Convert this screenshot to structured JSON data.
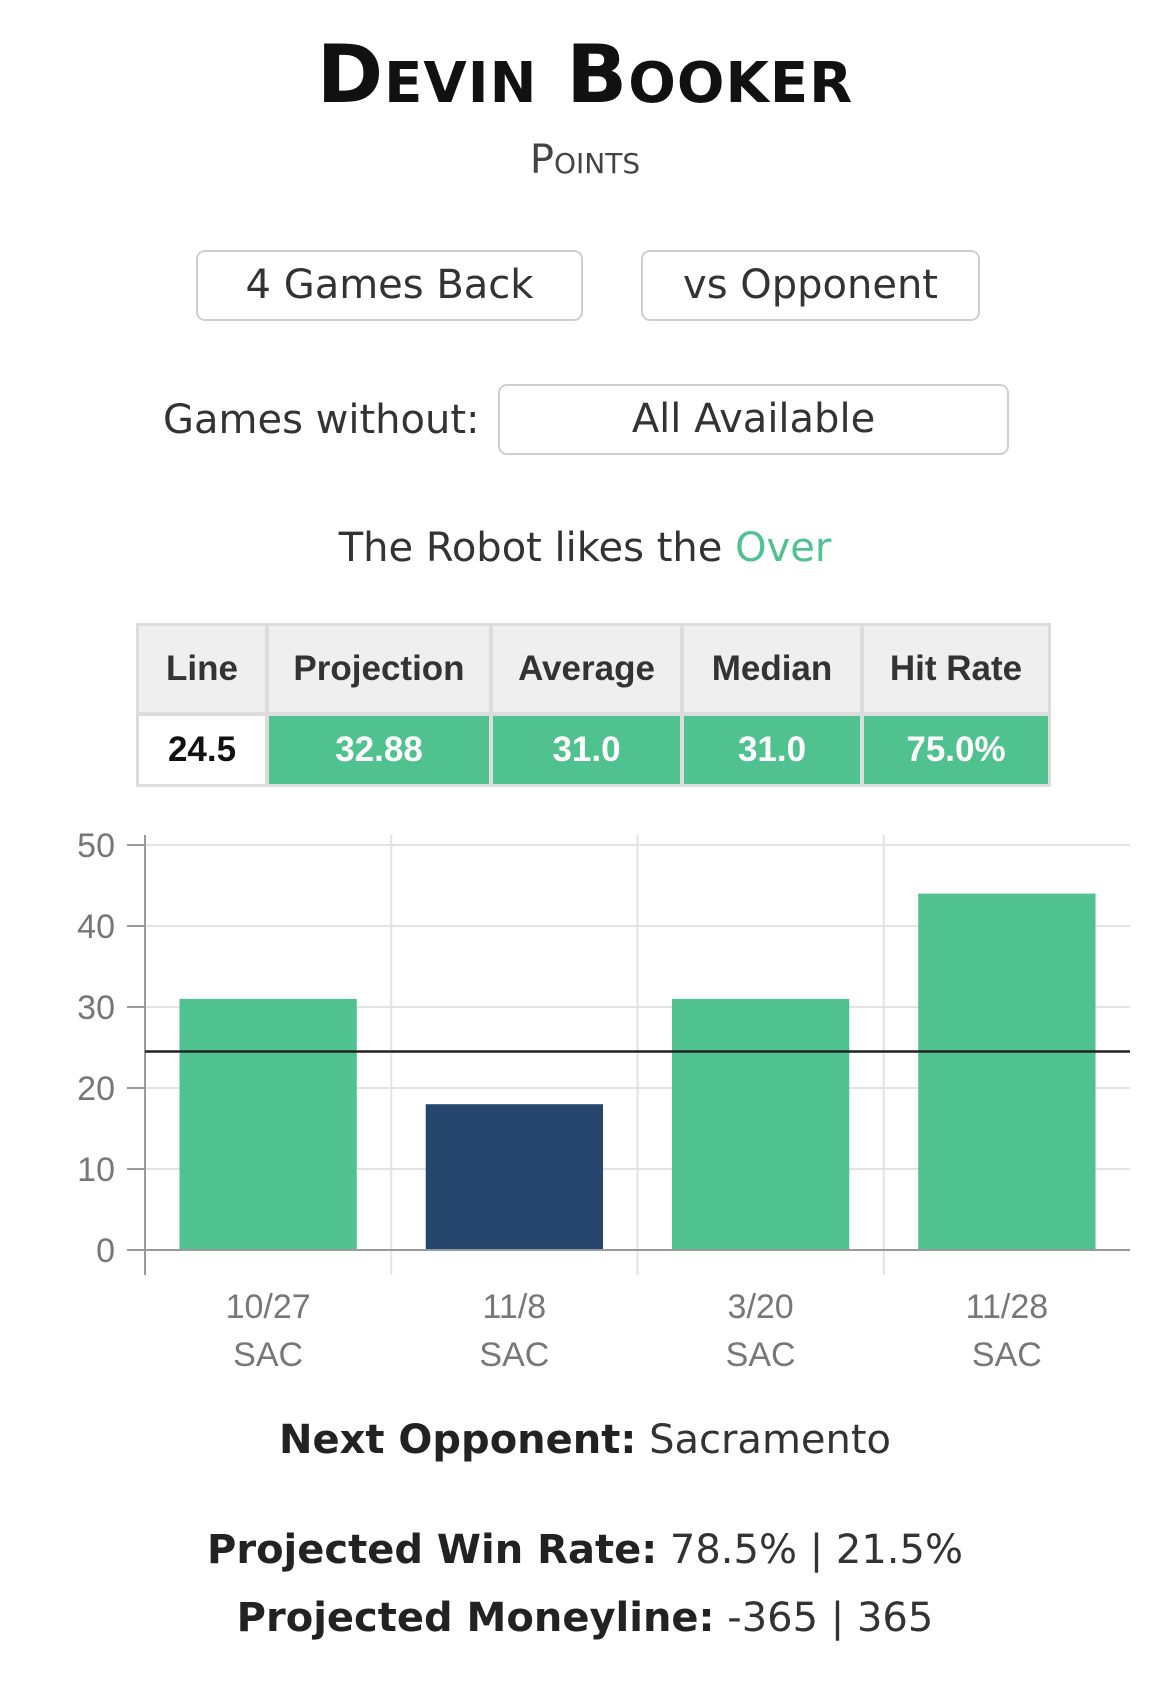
{
  "header": {
    "player": "Devin Booker",
    "stat": "Points"
  },
  "filters": {
    "games_back": "4 Games Back",
    "vs_opponent": "vs Opponent",
    "games_without_label": "Games without:",
    "games_without_value": "All Available"
  },
  "recommendation": {
    "prefix": "The Robot likes the",
    "pick": "Over",
    "pick_color": "#4fc28f"
  },
  "stats_table": {
    "headers": [
      "Line",
      "Projection",
      "Average",
      "Median",
      "Hit Rate"
    ],
    "values": [
      "24.5",
      "32.88",
      "31.0",
      "31.0",
      "75.0%"
    ]
  },
  "chart_data": {
    "type": "bar",
    "categories": [
      "10/27",
      "11/8",
      "3/20",
      "11/28"
    ],
    "sublabels": [
      "SAC",
      "SAC",
      "SAC",
      "SAC"
    ],
    "values": [
      31,
      18,
      31,
      44
    ],
    "colors": [
      "#4fc28f",
      "#26466d",
      "#4fc28f",
      "#4fc28f"
    ],
    "reference_line": 24.5,
    "ylim": [
      0,
      50
    ],
    "yticks": [
      0,
      10,
      20,
      30,
      40,
      50
    ],
    "grid": true
  },
  "footer": {
    "next_opponent_label": "Next Opponent:",
    "next_opponent_value": "Sacramento",
    "win_rate_label": "Projected Win Rate:",
    "win_rate_value": "78.5% | 21.5%",
    "moneyline_label": "Projected Moneyline:",
    "moneyline_value": "-365 | 365"
  }
}
